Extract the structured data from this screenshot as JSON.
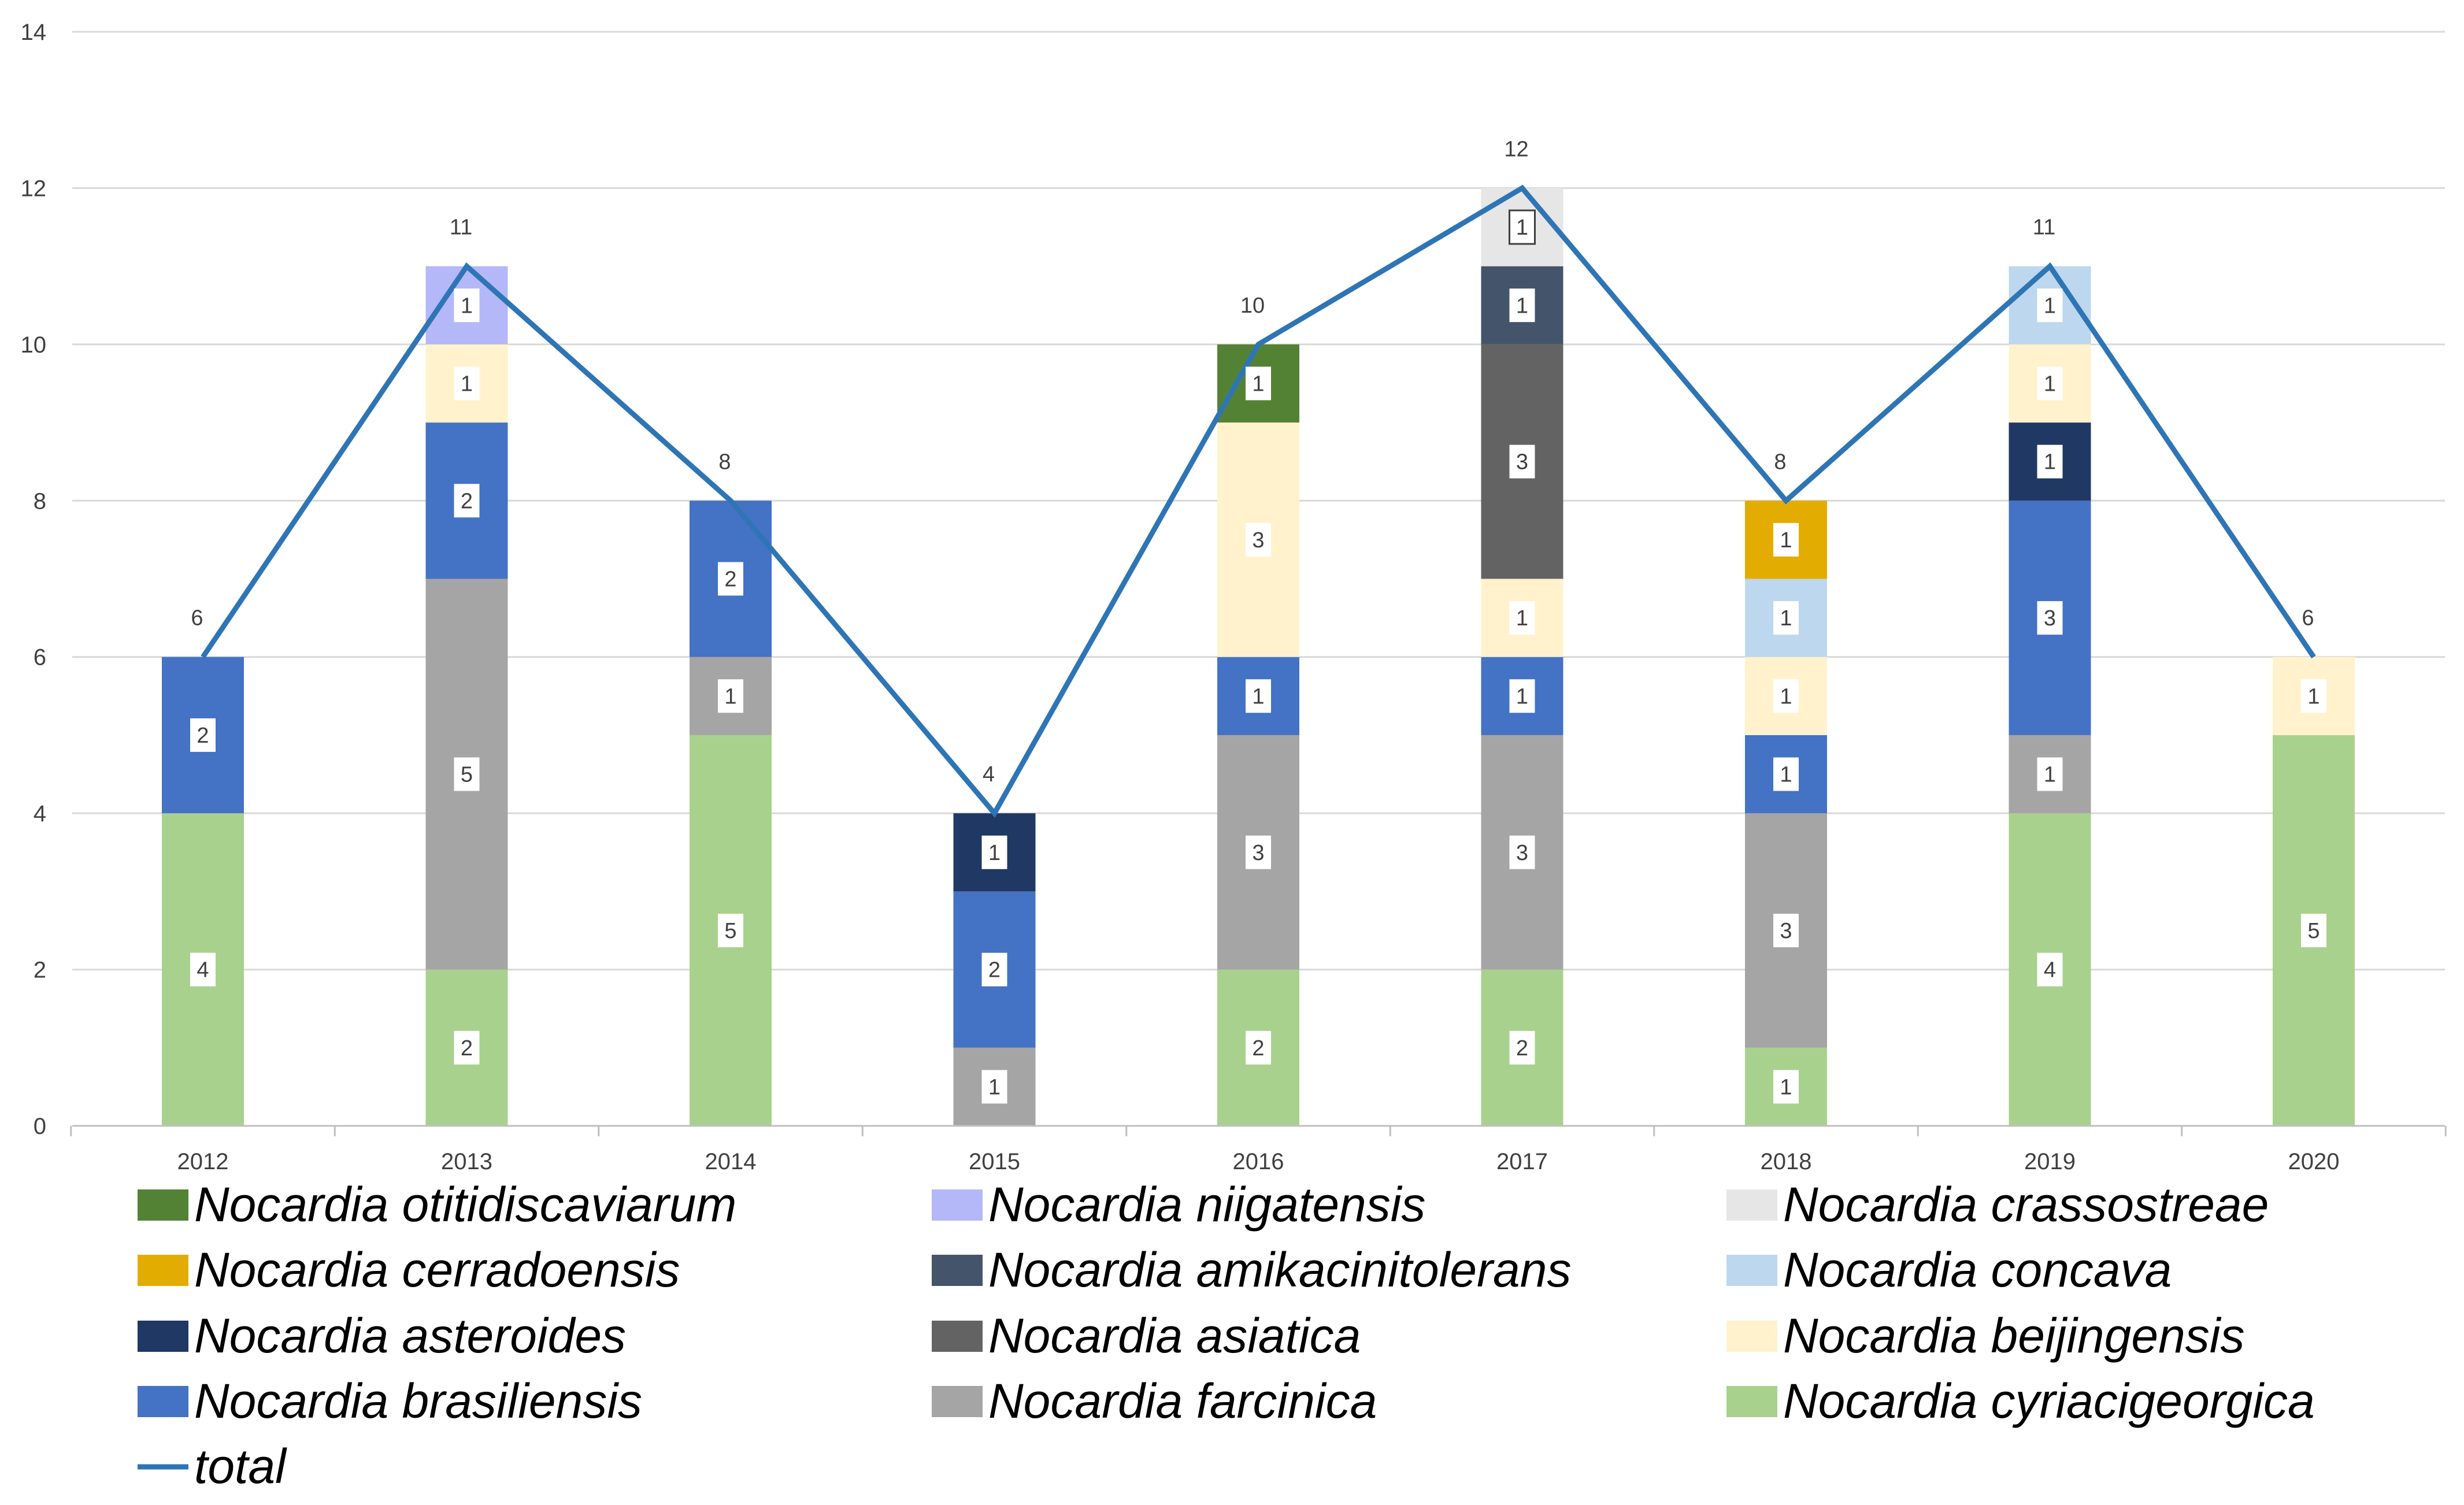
{
  "chart_data": {
    "type": "bar",
    "stacked": true,
    "title": "",
    "xlabel": "",
    "ylabel": "",
    "ylim": [
      0,
      14
    ],
    "yticks": [
      0,
      2,
      4,
      6,
      8,
      10,
      12,
      14
    ],
    "grid": true,
    "legend_position": "bottom",
    "categories": [
      "2012",
      "2013",
      "2014",
      "2015",
      "2016",
      "2017",
      "2018",
      "2019",
      "2020"
    ],
    "series": [
      {
        "name": "Nocardia cyriacigeorgica",
        "color": "#a9d18e",
        "values": [
          4,
          2,
          5,
          0,
          2,
          2,
          1,
          4,
          5
        ]
      },
      {
        "name": "Nocardia farcinica",
        "color": "#a5a5a5",
        "values": [
          0,
          5,
          1,
          1,
          3,
          3,
          3,
          1,
          0
        ]
      },
      {
        "name": "Nocardia brasiliensis",
        "color": "#4472c4",
        "values": [
          2,
          2,
          2,
          2,
          1,
          1,
          1,
          3,
          0
        ]
      },
      {
        "name": "Nocardia asteroides",
        "color": "#203864",
        "values": [
          0,
          0,
          0,
          1,
          0,
          0,
          0,
          1,
          0
        ]
      },
      {
        "name": "Nocardia beijingensis",
        "color": "#fff2cc",
        "values": [
          0,
          1,
          0,
          0,
          3,
          1,
          1,
          1,
          1
        ]
      },
      {
        "name": "Nocardia asiatica",
        "color": "#636363",
        "values": [
          0,
          0,
          0,
          0,
          0,
          3,
          0,
          0,
          0
        ]
      },
      {
        "name": "Nocardia amikacinitolerans",
        "color": "#44546a",
        "values": [
          0,
          0,
          0,
          0,
          0,
          1,
          0,
          0,
          0
        ]
      },
      {
        "name": "Nocardia concava",
        "color": "#bdd7ee",
        "values": [
          0,
          0,
          0,
          0,
          0,
          0,
          1,
          1,
          0
        ]
      },
      {
        "name": "Nocardia cerradoensis",
        "color": "#e3ac00",
        "values": [
          0,
          0,
          0,
          0,
          0,
          0,
          1,
          0,
          0
        ]
      },
      {
        "name": "Nocardia niigatensis",
        "color": "#b4b8f8",
        "values": [
          0,
          1,
          0,
          0,
          0,
          0,
          0,
          0,
          0
        ]
      },
      {
        "name": "Nocardia crassostreae",
        "color": "#e7e6e6",
        "values": [
          0,
          0,
          0,
          0,
          0,
          1,
          0,
          0,
          0
        ]
      },
      {
        "name": "Nocardia otitidiscaviarum",
        "color": "#548235",
        "values": [
          0,
          0,
          0,
          0,
          1,
          0,
          0,
          0,
          0
        ]
      }
    ],
    "line": {
      "name": "total",
      "color": "#2e75b6",
      "values": [
        6,
        11,
        8,
        4,
        10,
        12,
        8,
        11,
        6
      ]
    },
    "legend_order": [
      "Nocardia otitidiscaviarum",
      "Nocardia niigatensis",
      "Nocardia crassostreae",
      "Nocardia cerradoensis",
      "Nocardia amikacinitolerans",
      "Nocardia concava",
      "Nocardia asteroides",
      "Nocardia asiatica",
      "Nocardia beijingensis",
      "Nocardia brasiliensis",
      "Nocardia farcinica",
      "Nocardia cyriacigeorgica",
      "total"
    ]
  }
}
